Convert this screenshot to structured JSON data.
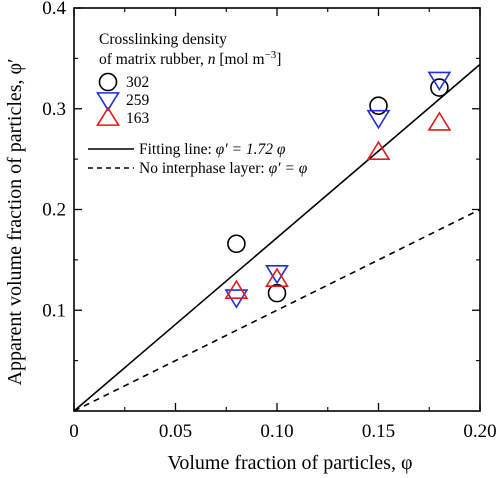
{
  "chart_data": {
    "type": "scatter",
    "xlabel": "Volume fraction of particles, φ",
    "ylabel": "Apparent volume fraction of particles, φ′",
    "xlim": [
      0,
      0.2
    ],
    "ylim": [
      0,
      0.4
    ],
    "x_ticks": [
      0,
      0.05,
      0.1,
      0.15,
      0.2
    ],
    "x_tick_labels": [
      "0",
      "0.05",
      "0.10",
      "0.15",
      "0.20"
    ],
    "y_ticks": [
      0.1,
      0.2,
      0.3,
      0.4
    ],
    "y_tick_labels": [
      "0.1",
      "0.2",
      "0.3",
      "0.4"
    ],
    "grid": false,
    "legend_title": {
      "line1": "Crosslinking density",
      "line2_prefix": "of matrix rubber, ",
      "line2_symbol": "n",
      "line2_unit": " [mol m",
      "line2_exp": "−3",
      "line2_close": "]"
    },
    "legend_placement": "top-left",
    "series": [
      {
        "name": "302",
        "marker": "circle",
        "color": "#000000",
        "x": [
          0.08,
          0.1,
          0.15,
          0.18
        ],
        "y": [
          0.166,
          0.117,
          0.303,
          0.321
        ]
      },
      {
        "name": "259",
        "marker": "triangle-down",
        "color": "#1f2fd6",
        "x": [
          0.08,
          0.1,
          0.15,
          0.18
        ],
        "y": [
          0.113,
          0.137,
          0.291,
          0.329
        ]
      },
      {
        "name": "163",
        "marker": "triangle-up",
        "color": "#e01b1b",
        "x": [
          0.08,
          0.1,
          0.15,
          0.18
        ],
        "y": [
          0.119,
          0.131,
          0.257,
          0.286
        ]
      }
    ],
    "lines": [
      {
        "label_prefix": "Fitting line: ",
        "label_eq": "φ′ = 1.72 φ",
        "style": "solid",
        "slope": 1.72
      },
      {
        "label_prefix": "No interphase layer: ",
        "label_eq": "φ′ = φ",
        "style": "dashed",
        "slope": 1.0
      }
    ]
  }
}
